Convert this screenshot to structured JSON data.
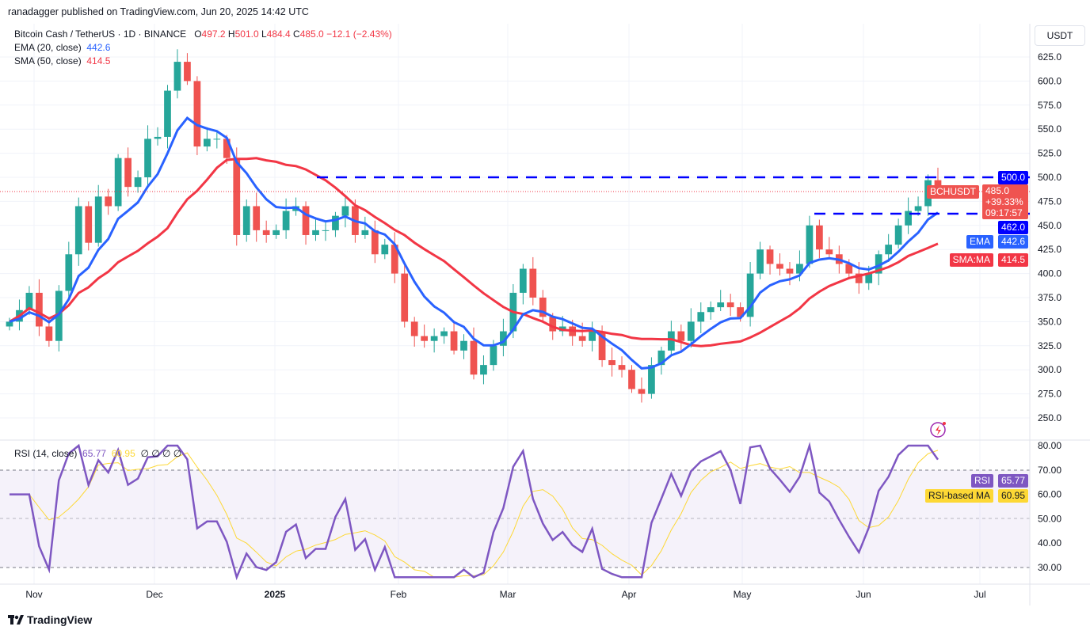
{
  "publish_line": "ranadagger published on TradingView.com, Jun 20, 2025 14:42 UTC",
  "legend": {
    "symbol": "Bitcoin Cash / TetherUS · 1D · BINANCE",
    "o_label": "O",
    "o": "497.2",
    "h_label": "H",
    "h": "501.0",
    "l_label": "L",
    "l": "484.4",
    "c_label": "C",
    "c": "485.0",
    "change": "−12.1 (−2.43%)",
    "ema_label": "EMA (20, close)",
    "ema_value": "442.6",
    "sma_label": "SMA (50, close)",
    "sma_value": "414.5"
  },
  "rsi_legend": {
    "label": "RSI (14, close)",
    "rsi": "65.77",
    "ma": "60.95",
    "extras": "∅ ∅ ∅ ∅"
  },
  "currency": "USDT",
  "price_labels": {
    "level_500": "500.0",
    "level_462": "462.0",
    "symbol": "BCHUSDT",
    "price": "485.0",
    "pct": "+39.33%",
    "countdown": "09:17:57",
    "ema_tag": "EMA",
    "ema": "442.6",
    "sma_tag": "SMA:MA",
    "sma": "414.5",
    "rsi_tag": "RSI",
    "rsi": "65.77",
    "rsi_ma_tag": "RSI-based MA",
    "rsi_ma": "60.95"
  },
  "logo": "TradingView",
  "colors": {
    "up": "#26a69a",
    "down": "#ef5350",
    "ema": "#2962ff",
    "sma": "#f23645",
    "rsi": "#7e57c2",
    "rsi_ma": "#fdd835",
    "level": "#0000ff"
  },
  "chart_data": {
    "type": "candlestick",
    "title": "Bitcoin Cash / TetherUS · 1D · BINANCE",
    "x_ticks": [
      "Nov",
      "Dec",
      "2025",
      "Feb",
      "Mar",
      "Apr",
      "May",
      "Jun",
      "Jul"
    ],
    "y_ticks": [
      250,
      275,
      300,
      325,
      350,
      375,
      400,
      425,
      450,
      475,
      500,
      525,
      550,
      575,
      600,
      625
    ],
    "ylim": [
      228,
      650
    ],
    "rsi_ticks": [
      30,
      40,
      50,
      60,
      70,
      80
    ],
    "rsi_band": [
      30,
      70
    ],
    "horizontal_levels": [
      500,
      462
    ],
    "closes": [
      350,
      362,
      380,
      345,
      330,
      382,
      420,
      470,
      432,
      480,
      470,
      520,
      490,
      500,
      540,
      542,
      590,
      620,
      600,
      532,
      540,
      540,
      520,
      440,
      470,
      445,
      440,
      445,
      465,
      470,
      440,
      445,
      445,
      460,
      470,
      440,
      445,
      420,
      430,
      400,
      350,
      335,
      330,
      335,
      340,
      320,
      330,
      295,
      305,
      325,
      340,
      380,
      405,
      375,
      355,
      340,
      345,
      335,
      330,
      340,
      310,
      305,
      300,
      280,
      275,
      305,
      320,
      340,
      330,
      350,
      360,
      365,
      370,
      365,
      355,
      400,
      425,
      410,
      405,
      400,
      410,
      450,
      425,
      420,
      410,
      400,
      390,
      400,
      420,
      430,
      450,
      465,
      470,
      497,
      485
    ]
  }
}
